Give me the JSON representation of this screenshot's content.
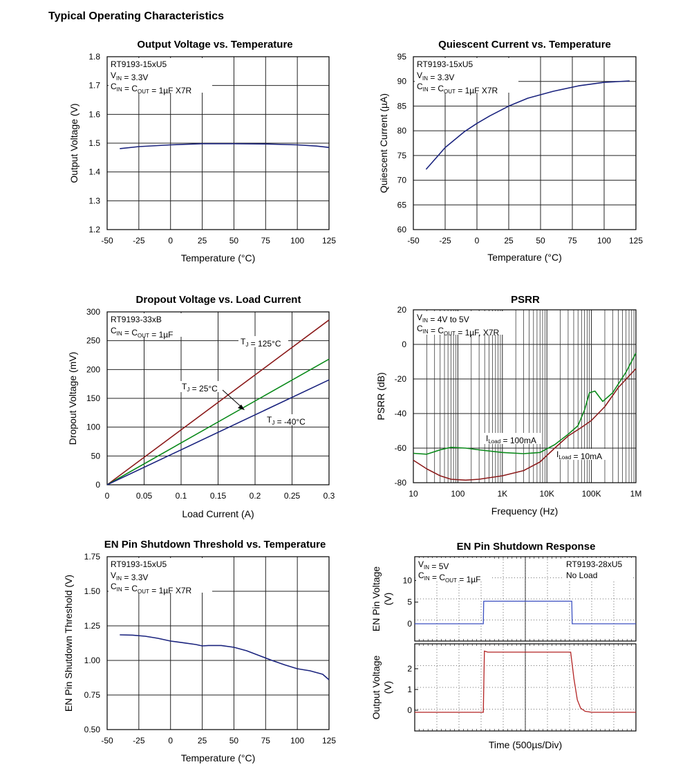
{
  "page_title": "Typical Operating Characteristics",
  "chart_data": [
    {
      "id": "c1",
      "type": "line",
      "title": "Output Voltage vs. Temperature",
      "xlabel": "Temperature (°C)",
      "ylabel": "Output Voltage (V)",
      "xlim": [
        -50,
        125
      ],
      "ylim": [
        1.2,
        1.8
      ],
      "xticks": [
        -50,
        -25,
        0,
        25,
        50,
        75,
        100,
        125
      ],
      "yticks": [
        1.2,
        1.3,
        1.4,
        1.5,
        1.6,
        1.7,
        1.8
      ],
      "grid": true,
      "info": [
        {
          "text": "RT9193-15xU5"
        },
        {
          "base": "V",
          "sub": "IN",
          "rest": " = 3.3V"
        },
        {
          "base": "C",
          "sub": "IN",
          "mid": " = C",
          "sub2": "OUT",
          "rest": " = 1µF X7R"
        }
      ],
      "colors": {
        "line": "#1a237e"
      },
      "series": [
        {
          "x": [
            -40,
            -25,
            0,
            25,
            50,
            75,
            100,
            115,
            125
          ],
          "y": [
            1.481,
            1.488,
            1.494,
            1.498,
            1.498,
            1.497,
            1.494,
            1.49,
            1.485
          ]
        }
      ]
    },
    {
      "id": "c2",
      "type": "line",
      "title": "Quiescent Current vs. Temperature",
      "xlabel": "Temperature (°C)",
      "ylabel": "Quiescent Current (µA)",
      "xlim": [
        -50,
        125
      ],
      "ylim": [
        60,
        95
      ],
      "xticks": [
        -50,
        -25,
        0,
        25,
        50,
        75,
        100,
        125
      ],
      "yticks": [
        60,
        65,
        70,
        75,
        80,
        85,
        90,
        95
      ],
      "grid": true,
      "info": [
        {
          "text": "RT9193-15xU5"
        },
        {
          "base": "V",
          "sub": "IN",
          "rest": " = 3.3V"
        },
        {
          "base": "C",
          "sub": "IN",
          "mid": " = C",
          "sub2": "OUT",
          "rest": " = 1µF X7R"
        }
      ],
      "colors": {
        "line": "#1a237e"
      },
      "series": [
        {
          "x": [
            -40,
            -25,
            -10,
            0,
            10,
            25,
            40,
            60,
            80,
            100,
            120
          ],
          "y": [
            72.2,
            76.6,
            79.8,
            81.5,
            83.0,
            85.0,
            86.6,
            88.0,
            89.1,
            89.8,
            90.1
          ]
        }
      ]
    },
    {
      "id": "c3",
      "type": "line",
      "title": "Dropout Voltage vs. Load Current",
      "xlabel": "Load Current (A)",
      "ylabel": "Dropout Voltage  (mV)",
      "xlim": [
        0,
        0.3
      ],
      "ylim": [
        0,
        300
      ],
      "xticks": [
        0,
        0.05,
        0.1,
        0.15,
        0.2,
        0.25,
        0.3
      ],
      "yticks": [
        0,
        50,
        100,
        150,
        200,
        250,
        300
      ],
      "grid": true,
      "info": [
        {
          "text": "RT9193-33xB"
        },
        {
          "base": "C",
          "sub": "IN",
          "mid": " = C",
          "sub2": "OUT",
          "rest": " = 1µF"
        }
      ],
      "series": [
        {
          "name": "T_J = 125°C",
          "color": "#8b1a1a",
          "x": [
            0,
            0.3
          ],
          "y": [
            0,
            286
          ]
        },
        {
          "name": "T_J = 25°C",
          "color": "#0a8a1a",
          "x": [
            0,
            0.3
          ],
          "y": [
            0,
            218
          ]
        },
        {
          "name": "T_J = -40°C",
          "color": "#1a237e",
          "x": [
            0,
            0.3
          ],
          "y": [
            0,
            182
          ]
        }
      ],
      "labels": [
        {
          "base": "T",
          "sub": "J",
          "rest": " = 125°C"
        },
        {
          "base": "T",
          "sub": "J",
          "rest": " = 25°C"
        },
        {
          "base": "T",
          "sub": "J",
          "rest": " = -40°C"
        }
      ]
    },
    {
      "id": "c4",
      "type": "line",
      "title": "PSRR",
      "xlabel": "Frequency (Hz)",
      "ylabel": "PSRR (dB)",
      "xscale": "log",
      "xlim": [
        10,
        1000000
      ],
      "ylim": [
        -80,
        20
      ],
      "xticks": [
        10,
        100,
        1000,
        10000,
        100000,
        1000000
      ],
      "xticklabels": [
        "10",
        "100",
        "1K",
        "10K",
        "100K",
        "1M"
      ],
      "yticks": [
        -80,
        -60,
        -40,
        -20,
        0,
        20
      ],
      "grid": true,
      "info": [
        {
          "base": "V",
          "sub": "IN",
          "rest": " = 4V to 5V"
        },
        {
          "base": "C",
          "sub": "IN",
          "mid": " = C",
          "sub2": "OUT",
          "rest": " = 1µF, X7R"
        }
      ],
      "series": [
        {
          "name": "I_Load = 100mA",
          "color": "#0a8a1a",
          "x": [
            10,
            20,
            40,
            70,
            150,
            300,
            1000,
            3000,
            7000,
            15000,
            30000,
            50000,
            70000,
            90000,
            120000,
            180000,
            300000,
            600000,
            1000000
          ],
          "y": [
            -63,
            -63.5,
            -61,
            -59.5,
            -60,
            -61,
            -62.5,
            -63.2,
            -62.5,
            -58,
            -52,
            -47,
            -38,
            -28,
            -27,
            -33,
            -28,
            -16,
            -5
          ]
        },
        {
          "name": "I_Load = 10mA",
          "color": "#8b1a1a",
          "x": [
            10,
            20,
            40,
            70,
            150,
            300,
            1000,
            3000,
            7000,
            15000,
            30000,
            60000,
            100000,
            200000,
            400000,
            1000000
          ],
          "y": [
            -67,
            -72,
            -76,
            -78,
            -78.5,
            -78,
            -76,
            -73,
            -68,
            -60,
            -53,
            -48,
            -44,
            -36,
            -25,
            -14
          ]
        }
      ],
      "labels": [
        {
          "base": "I",
          "sub": "Load",
          "rest": " = 100mA"
        },
        {
          "base": "I",
          "sub": "Load",
          "rest": " = 10mA"
        }
      ]
    },
    {
      "id": "c5",
      "type": "line",
      "title": "EN Pin Shutdown Threshold vs. Temperature",
      "xlabel": "Temperature (°C)",
      "ylabel": "EN Pin Shutdown Threshold (V)",
      "xlim": [
        -50,
        125
      ],
      "ylim": [
        0.5,
        1.75
      ],
      "xticks": [
        -50,
        -25,
        0,
        25,
        50,
        75,
        100,
        125
      ],
      "yticks": [
        0.5,
        0.75,
        1.0,
        1.25,
        1.5,
        1.75
      ],
      "yticklabels": [
        "0.50",
        "0.75",
        "1.00",
        "1.25",
        "1.50",
        "1.75"
      ],
      "grid": true,
      "info": [
        {
          "text": "RT9193-15xU5"
        },
        {
          "base": "V",
          "sub": "IN",
          "rest": " = 3.3V"
        },
        {
          "base": "C",
          "sub": "IN",
          "mid": " = C",
          "sub2": "OUT",
          "rest": " = 1µF X7R"
        }
      ],
      "colors": {
        "line": "#1a237e"
      },
      "series": [
        {
          "x": [
            -40,
            -30,
            -20,
            -10,
            0,
            10,
            20,
            25,
            30,
            40,
            50,
            60,
            70,
            80,
            90,
            100,
            110,
            120,
            125
          ],
          "y": [
            1.185,
            1.183,
            1.175,
            1.16,
            1.14,
            1.128,
            1.115,
            1.105,
            1.108,
            1.108,
            1.095,
            1.07,
            1.035,
            1.0,
            0.968,
            0.94,
            0.925,
            0.9,
            0.86
          ]
        }
      ]
    },
    {
      "id": "c6",
      "type": "scope",
      "title": "EN Pin Shutdown Response",
      "xlabel": "Time (500µs/Div)",
      "grid": true,
      "info": [
        {
          "base": "V",
          "sub": "IN",
          "rest": " = 5V"
        },
        {
          "base": "C",
          "sub": "IN",
          "mid": " = C",
          "sub2": "OUT",
          "rest": " = 1µF"
        }
      ],
      "info_right": [
        "RT9193-28xU5",
        "No Load"
      ],
      "top": {
        "ylabel": "EN Pin Voltage\n(V)",
        "yticks": [
          0,
          5,
          10
        ],
        "ylim": [
          -4,
          15.5
        ],
        "color": "#3a4fc0",
        "x": [
          0,
          3.1,
          3.12,
          7.1,
          7.12,
          10
        ],
        "y": [
          0,
          0,
          5.2,
          5.2,
          0,
          0
        ]
      },
      "bottom": {
        "ylabel": "Output Voltage\n(V)",
        "yticks": [
          0,
          1,
          2
        ],
        "ylim": [
          -1,
          3.2
        ],
        "color": "#b22222",
        "x": [
          0,
          3.1,
          3.15,
          3.3,
          7.05,
          7.2,
          7.35,
          7.5,
          7.7,
          8.0,
          10
        ],
        "y": [
          -0.1,
          -0.1,
          2.85,
          2.8,
          2.8,
          1.5,
          0.5,
          0.1,
          -0.05,
          -0.1,
          -0.1
        ]
      }
    }
  ]
}
